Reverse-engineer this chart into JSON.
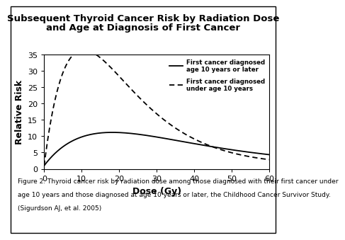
{
  "title_line1": "Subsequent Thyroid Cancer Risk by Radiation Dose",
  "title_line2": "and Age at Diagnosis of First Cancer",
  "xlabel": "Dose (Gy)",
  "ylabel": "Relative Risk",
  "xlim": [
    0,
    60
  ],
  "ylim": [
    0,
    35
  ],
  "yticks": [
    0,
    5,
    10,
    15,
    20,
    25,
    30,
    35
  ],
  "xticks": [
    0,
    10,
    20,
    30,
    40,
    50,
    60
  ],
  "legend_solid": "First cancer diagnosed\nage 10 years or later",
  "legend_dashed": "First cancer diagnosed\nunder age 10 years",
  "caption_line1": "Figure 2. Thyroid cancer risk by radiation dose among those diagnosed with their first cancer under",
  "caption_line2": "age 10 years and those diagnosed at age 10 years or later, the Childhood Cancer Survivor Study.",
  "caption_line3": "(Sigurdson AJ, et al. 2005)",
  "bg_color": "#ffffff",
  "line_color": "#000000",
  "title_fontsize": 9.5,
  "axis_label_fontsize": 9,
  "tick_fontsize": 8,
  "caption_fontsize": 6.5,
  "solid_peak_val": 10.0,
  "solid_peak_x": 15.0,
  "solid_b": 0.055,
  "dashed_peak_val": 33.0,
  "dashed_peak_x": 15.0,
  "dashed_b": 0.095
}
